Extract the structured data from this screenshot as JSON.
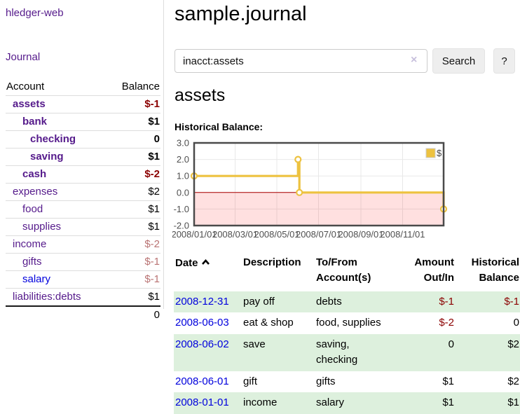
{
  "colors": {
    "link_purple": "#551a8b",
    "link_blue": "#0000dd",
    "negative": "#8b0000",
    "negative_dim": "#b97373",
    "row_green": "#ddf0dd",
    "series_gold": "#edc240",
    "zero_line": "#aa0000",
    "negative_region_pink": "rgba(255,0,0,0.12)"
  },
  "sidebar": {
    "brand": "hledger-web",
    "journal_link": "Journal",
    "table": {
      "header_account": "Account",
      "header_balance": "Balance",
      "rows": [
        {
          "account": "assets",
          "balance": "$-1",
          "level": 1,
          "matched": true,
          "balance_style": "negative"
        },
        {
          "account": "bank",
          "balance": "$1",
          "level": 2,
          "matched": true,
          "balance_style": "normal"
        },
        {
          "account": "checking",
          "balance": "0",
          "level": 3,
          "matched": true,
          "balance_style": "normal"
        },
        {
          "account": "saving",
          "balance": "$1",
          "level": 3,
          "matched": true,
          "balance_style": "normal"
        },
        {
          "account": "cash",
          "balance": "$-2",
          "level": 2,
          "matched": true,
          "balance_style": "negative"
        },
        {
          "account": "expenses",
          "balance": "$2",
          "level": 1,
          "matched": false,
          "balance_style": "normal"
        },
        {
          "account": "food",
          "balance": "$1",
          "level": 2,
          "matched": false,
          "balance_style": "normal"
        },
        {
          "account": "supplies",
          "balance": "$1",
          "level": 2,
          "matched": false,
          "balance_style": "normal"
        },
        {
          "account": "income",
          "balance": "$-2",
          "level": 1,
          "matched": false,
          "balance_style": "negative-dim"
        },
        {
          "account": "gifts",
          "balance": "$-1",
          "level": 2,
          "matched": false,
          "balance_style": "negative-dim"
        },
        {
          "account": "salary",
          "balance": "$-1",
          "level": 2,
          "matched": false,
          "balance_style": "negative-dim"
        },
        {
          "account": "liabilities:debts",
          "balance": "$1",
          "level": 1,
          "matched": false,
          "balance_style": "normal"
        }
      ],
      "total": "0"
    }
  },
  "main": {
    "title": "sample.journal",
    "search": {
      "value": "inacct:assets",
      "clear_icon": "×",
      "button_label": "Search",
      "help_label": "?"
    },
    "account_heading": "assets",
    "chart_label": "Historical Balance:"
  },
  "chart_data": {
    "type": "line",
    "step": true,
    "title": "Historical Balance",
    "series": [
      {
        "name": "$",
        "color": "#edc240",
        "points": [
          [
            "2008-01-01",
            1
          ],
          [
            "2008-06-01",
            2
          ],
          [
            "2008-06-03",
            0
          ],
          [
            "2008-12-31",
            -1
          ]
        ]
      }
    ],
    "x_ticks": [
      "2008/01/01",
      "2008/03/01",
      "2008/05/01",
      "2008/07/01",
      "2008/09/01",
      "2008/11/01"
    ],
    "y_ticks": [
      3.0,
      2.0,
      1.0,
      0.0,
      -1.0,
      -2.0
    ],
    "xlim": [
      "2008-01-01",
      "2008-12-31"
    ],
    "ylim": [
      -2,
      3
    ],
    "grid": true,
    "legend": {
      "position": "top-right",
      "entries": [
        {
          "label": "$",
          "color": "#edc240"
        }
      ]
    },
    "negative_region_shaded": true,
    "zero_line": true
  },
  "register": {
    "header": {
      "date": "Date",
      "sort": "ascending",
      "description": "Description",
      "tofrom_line1": "To/From",
      "tofrom_line2": "Account(s)",
      "amount_line1": "Amount",
      "amount_line2": "Out/In",
      "hist_line1": "Historical",
      "hist_line2": "Balance"
    },
    "rows": [
      {
        "date": "2008-12-31",
        "description": "pay off",
        "accounts": "debts",
        "amount": "$-1",
        "balance": "$-1"
      },
      {
        "date": "2008-06-03",
        "description": "eat & shop",
        "accounts": "food, supplies",
        "amount": "$-2",
        "balance": "0"
      },
      {
        "date": "2008-06-02",
        "description": "save",
        "accounts": "saving, checking",
        "amount": "0",
        "balance": "$2"
      },
      {
        "date": "2008-06-01",
        "description": "gift",
        "accounts": "gifts",
        "amount": "$1",
        "balance": "$2"
      },
      {
        "date": "2008-01-01",
        "description": "income",
        "accounts": "salary",
        "amount": "$1",
        "balance": "$1"
      }
    ]
  }
}
